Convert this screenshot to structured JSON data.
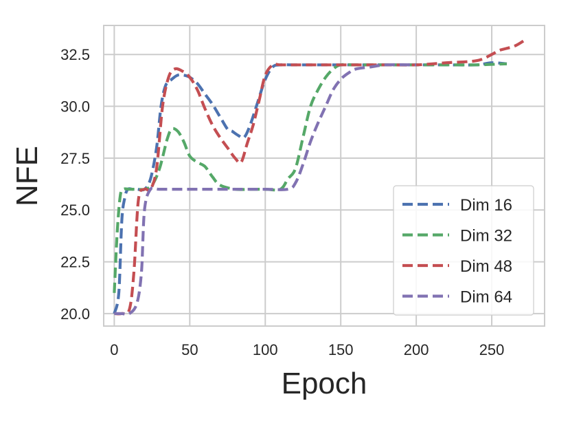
{
  "chart_data": {
    "type": "line",
    "title": "",
    "xlabel": "Epoch",
    "ylabel": "NFE",
    "xlim": [
      -7,
      285
    ],
    "ylim": [
      19.4,
      33.9
    ],
    "xticks": [
      0,
      50,
      100,
      150,
      200,
      250
    ],
    "yticks": [
      20.0,
      22.5,
      25.0,
      27.5,
      30.0,
      32.5
    ],
    "xtick_labels": [
      "0",
      "50",
      "100",
      "150",
      "200",
      "250"
    ],
    "ytick_labels": [
      "20.0",
      "22.5",
      "25.0",
      "27.5",
      "30.0",
      "32.5"
    ],
    "grid": true,
    "legend_position": "lower right",
    "line_style": "dashed",
    "series": [
      {
        "name": "Dim 16",
        "color": "#4c72b0",
        "x": [
          0,
          3,
          5,
          7,
          9,
          12,
          15,
          20,
          24,
          28,
          31,
          34,
          38,
          42,
          46,
          50,
          55,
          60,
          65,
          70,
          75,
          78,
          82,
          86,
          90,
          95,
          100,
          105,
          110,
          120,
          140,
          160,
          180,
          200,
          220,
          240,
          250,
          260
        ],
        "y": [
          20.0,
          21.0,
          24.5,
          25.6,
          26.0,
          26.0,
          26.0,
          26.0,
          26.5,
          28.0,
          30.0,
          31.0,
          31.3,
          31.5,
          31.5,
          31.4,
          31.1,
          30.6,
          30.1,
          29.5,
          28.9,
          28.8,
          28.6,
          28.5,
          29.1,
          30.2,
          31.3,
          31.9,
          32.0,
          32.0,
          32.0,
          32.0,
          32.0,
          32.0,
          32.0,
          32.0,
          32.1,
          32.05
        ]
      },
      {
        "name": "Dim 32",
        "color": "#55a868",
        "x": [
          0,
          2,
          4,
          6,
          10,
          15,
          20,
          25,
          30,
          35,
          38,
          42,
          46,
          50,
          55,
          60,
          65,
          70,
          80,
          90,
          100,
          110,
          115,
          120,
          125,
          130,
          135,
          140,
          145,
          150,
          160,
          180,
          200,
          220,
          240,
          260
        ],
        "y": [
          21.0,
          24.0,
          25.7,
          26.0,
          26.0,
          26.0,
          26.0,
          26.2,
          27.0,
          28.4,
          28.9,
          28.8,
          28.3,
          27.6,
          27.3,
          27.1,
          26.6,
          26.2,
          26.0,
          26.0,
          26.0,
          26.0,
          26.5,
          27.0,
          28.5,
          30.0,
          30.8,
          31.4,
          31.8,
          32.0,
          32.0,
          32.0,
          32.0,
          32.0,
          32.0,
          32.05
        ]
      },
      {
        "name": "Dim 48",
        "color": "#c44e52",
        "x": [
          0,
          5,
          10,
          13,
          16,
          20,
          24,
          28,
          32,
          36,
          40,
          45,
          50,
          55,
          60,
          65,
          70,
          75,
          80,
          84,
          88,
          92,
          96,
          100,
          105,
          110,
          120,
          140,
          160,
          180,
          200,
          220,
          240,
          250,
          255,
          265,
          272
        ],
        "y": [
          20.0,
          20.0,
          20.2,
          22.0,
          25.5,
          26.0,
          26.0,
          27.0,
          30.0,
          31.4,
          31.8,
          31.7,
          31.4,
          30.8,
          29.9,
          29.1,
          28.5,
          28.0,
          27.5,
          27.3,
          28.2,
          29.1,
          30.3,
          31.5,
          32.0,
          32.0,
          32.0,
          32.0,
          32.0,
          32.0,
          32.0,
          32.1,
          32.2,
          32.5,
          32.7,
          32.9,
          33.2
        ]
      },
      {
        "name": "Dim 64",
        "color": "#8172b2",
        "x": [
          0,
          5,
          10,
          15,
          18,
          20,
          24,
          30,
          50,
          80,
          100,
          115,
          120,
          125,
          130,
          135,
          140,
          145,
          150,
          155,
          160,
          170,
          180,
          200
        ],
        "y": [
          20.0,
          20.0,
          20.0,
          20.5,
          22.0,
          25.0,
          26.0,
          26.0,
          26.0,
          26.0,
          26.0,
          26.0,
          26.3,
          27.2,
          28.3,
          29.2,
          30.0,
          30.8,
          31.3,
          31.6,
          31.8,
          31.9,
          32.0,
          32.0
        ]
      }
    ]
  }
}
